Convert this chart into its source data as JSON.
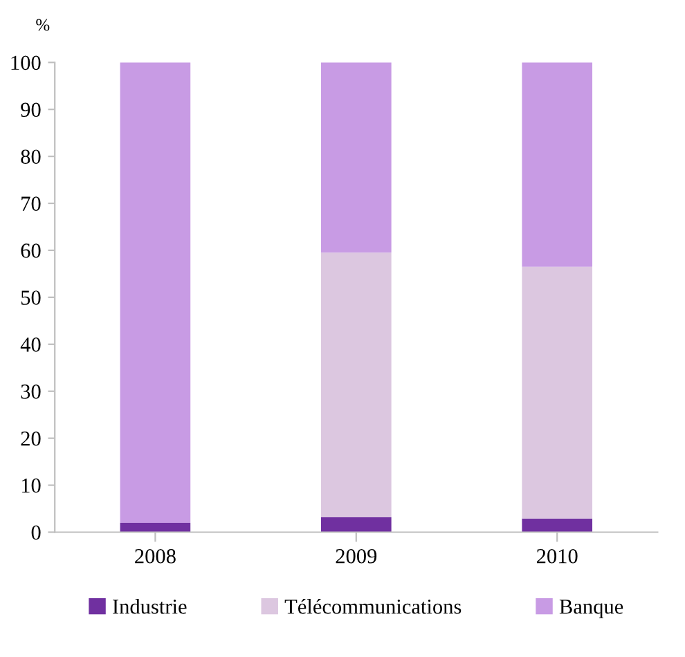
{
  "chart_data": {
    "type": "bar",
    "stacked": true,
    "ylabel": "%",
    "categories": [
      "2008",
      "2009",
      "2010"
    ],
    "series": [
      {
        "name": "Industrie",
        "color": "#7030a0",
        "values": [
          2.0,
          3.2,
          2.9
        ]
      },
      {
        "name": "Télécommunications",
        "color": "#dcc7e0",
        "values": [
          0,
          56.3,
          53.6
        ]
      },
      {
        "name": "Banque",
        "color": "#c89be4",
        "values": [
          98.0,
          40.5,
          43.5
        ]
      }
    ],
    "ylim": [
      0,
      100
    ],
    "yticks": [
      0,
      10,
      20,
      30,
      40,
      50,
      60,
      70,
      80,
      90,
      100
    ],
    "grid": false,
    "legend": "bottom"
  }
}
